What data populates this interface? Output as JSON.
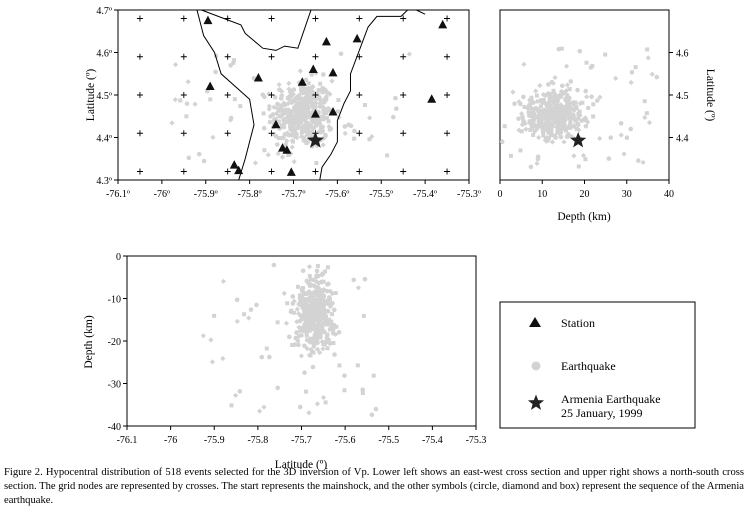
{
  "caption": "Figure 2. Hypocentral distribution of 518 events selected for the 3D inversion of Vp. Lower left shows an east-west cross section and upper right shows a north-south cross section. The grid nodes are represented by crosses. The start represents the mainshock, and the other symbols (circle, diamond and box) represent the sequence of the Armenia earthquake.",
  "colors": {
    "earthquake": "#d3d3d3",
    "station": "#111111",
    "mainshock": "#222222",
    "grid": "#000000"
  },
  "legend": {
    "station_label": "Station",
    "earthquake_label": "Earthquake",
    "mainshock_label_line1": "Armenia Earthquake",
    "mainshock_label_line2": "25 January, 1999",
    "icons": [
      "triangle-icon",
      "circle-icon",
      "star-icon"
    ]
  },
  "chart_data": [
    {
      "id": "map",
      "type": "scatter",
      "ylabel": "Latitude (º)",
      "xlim": [
        -76.1,
        -75.3
      ],
      "ylim": [
        4.3,
        4.7
      ],
      "x_ticks": [
        -76.1,
        -76.0,
        -75.9,
        -75.8,
        -75.7,
        -75.6,
        -75.5,
        -75.4,
        -75.3
      ],
      "x_tick_labels": [
        "-76.1º",
        "-76º",
        "-75.9º",
        "-75.8º",
        "-75.7º",
        "-75.6º",
        "-75.5º",
        "-75.4º",
        "-75.3º"
      ],
      "y_ticks": [
        4.3,
        4.4,
        4.5,
        4.6,
        4.7
      ],
      "y_tick_labels": [
        "4.3º",
        "4.4º",
        "4.5º",
        "4.6º",
        "4.7º"
      ],
      "grid_nodes_x": [
        -76.05,
        -75.95,
        -75.85,
        -75.75,
        -75.65,
        -75.55,
        -75.45,
        -75.35
      ],
      "grid_nodes_y": [
        4.32,
        4.41,
        4.5,
        4.59,
        4.68
      ],
      "stations": [
        [
          -75.895,
          4.675
        ],
        [
          -75.36,
          4.665
        ],
        [
          -75.625,
          4.625
        ],
        [
          -75.555,
          4.632
        ],
        [
          -75.655,
          4.56
        ],
        [
          -75.61,
          4.552
        ],
        [
          -75.78,
          4.54
        ],
        [
          -75.89,
          4.52
        ],
        [
          -75.68,
          4.53
        ],
        [
          -75.385,
          4.49
        ],
        [
          -75.61,
          4.46
        ],
        [
          -75.65,
          4.455
        ],
        [
          -75.725,
          4.375
        ],
        [
          -75.715,
          4.37
        ],
        [
          -75.835,
          4.335
        ],
        [
          -75.825,
          4.322
        ],
        [
          -75.705,
          4.318
        ],
        [
          -75.74,
          4.43
        ]
      ],
      "mainshock": [
        -75.65,
        4.393
      ],
      "boundary_lines": [
        [
          [
            -75.92,
            4.7
          ],
          [
            -75.905,
            4.64
          ],
          [
            -75.88,
            4.6
          ],
          [
            -75.865,
            4.55
          ],
          [
            -75.8,
            4.49
          ],
          [
            -75.79,
            4.43
          ],
          [
            -75.8,
            4.39
          ],
          [
            -75.81,
            4.35
          ],
          [
            -75.825,
            4.3
          ]
        ],
        [
          [
            -75.91,
            4.7
          ],
          [
            -75.82,
            4.665
          ],
          [
            -75.81,
            4.645
          ],
          [
            -75.77,
            4.61
          ],
          [
            -75.74,
            4.605
          ],
          [
            -75.72,
            4.615
          ],
          [
            -75.69,
            4.61
          ],
          [
            -75.66,
            4.7
          ]
        ],
        [
          [
            -75.44,
            4.7
          ],
          [
            -75.455,
            4.685
          ],
          [
            -75.51,
            4.685
          ],
          [
            -75.53,
            4.66
          ],
          [
            -75.57,
            4.55
          ],
          [
            -75.57,
            4.51
          ],
          [
            -75.585,
            4.48
          ],
          [
            -75.6,
            4.44
          ],
          [
            -75.6,
            4.39
          ],
          [
            -75.615,
            4.36
          ],
          [
            -75.635,
            4.33
          ],
          [
            -75.64,
            4.3
          ]
        ],
        [
          [
            -75.42,
            4.7
          ],
          [
            -75.4,
            4.69
          ]
        ]
      ],
      "cluster": {
        "center": [
          -75.68,
          4.455
        ],
        "spread": [
          0.035,
          0.04
        ],
        "count": 420,
        "outliers": 50,
        "outlier_range": [
          [
            -75.98,
            -75.42
          ],
          [
            4.34,
            4.6
          ]
        ]
      }
    },
    {
      "id": "ns_section",
      "type": "scatter",
      "xlabel": "Depth (km)",
      "ylabel": "Latitude (º)",
      "xlim": [
        0,
        40
      ],
      "ylim": [
        4.3,
        4.7
      ],
      "x_ticks": [
        0,
        10,
        20,
        30,
        40
      ],
      "x_tick_labels": [
        "0",
        "10",
        "20",
        "30",
        "40"
      ],
      "y_ticks": [
        4.4,
        4.5,
        4.6
      ],
      "y_tick_labels": [
        "4.4",
        "4.5",
        "4.6"
      ],
      "mainshock": [
        18.5,
        4.393
      ],
      "cluster": {
        "center": [
          13,
          4.455
        ],
        "spread": [
          3.6,
          0.03
        ],
        "count": 380,
        "outliers": 60,
        "outlier_range": [
          [
            0,
            38
          ],
          [
            4.33,
            4.63
          ]
        ]
      }
    },
    {
      "id": "ew_section",
      "type": "scatter",
      "xlabel": "Latitude (º)",
      "ylabel": "Depth (km)",
      "xlim": [
        -76.1,
        -75.3
      ],
      "ylim": [
        -40,
        0
      ],
      "x_ticks": [
        -76.1,
        -76.0,
        -75.9,
        -75.8,
        -75.7,
        -75.6,
        -75.5,
        -75.4,
        -75.3
      ],
      "x_tick_labels": [
        "-76.1",
        "-76",
        "-75.9",
        "-75.8",
        "-75.7",
        "-75.6",
        "-75.5",
        "-75.4",
        "-75.3"
      ],
      "y_ticks": [
        0,
        -10,
        -20,
        -30,
        -40
      ],
      "y_tick_labels": [
        "0",
        "-10",
        "-20",
        "-30",
        "-40"
      ],
      "cluster": {
        "center": [
          -75.67,
          -13
        ],
        "spread": [
          0.022,
          4.2
        ],
        "count": 400,
        "outliers": 55,
        "outlier_range": [
          [
            -75.93,
            -75.52
          ],
          [
            -38,
            -2
          ]
        ]
      }
    }
  ]
}
